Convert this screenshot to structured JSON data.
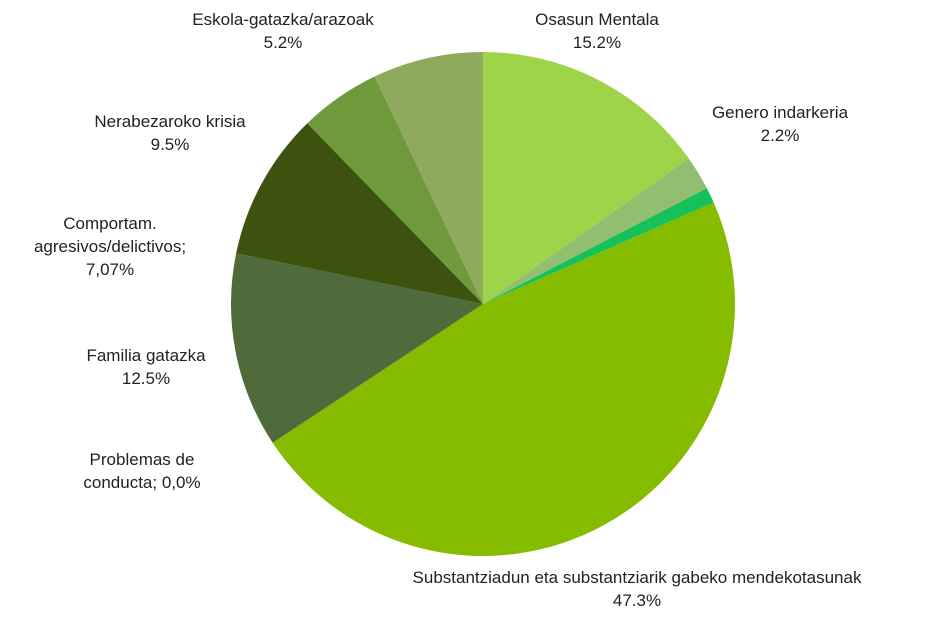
{
  "chart_data": {
    "type": "pie",
    "categories": [
      "Osasun Mentala",
      "Genero indarkeria",
      null,
      "Substantziadun eta substantziarik gabeko mendekotasunak",
      "Problemas de conducta;",
      "Familia gatazka",
      "Nerabezaroko krisia",
      "Eskola-gatazka/arazoak",
      "Comportam. agresivos/delictivos;"
    ],
    "values": [
      15.2,
      2.2,
      1.0,
      47.3,
      0.0,
      12.5,
      9.5,
      5.2,
      7.07
    ],
    "value_labels": [
      "15.2%",
      "2.2%",
      null,
      "47.3%",
      "0,0%",
      "12.5%",
      "9.5%",
      "5.2%",
      "7,07%"
    ],
    "colors": [
      "#9ed44a",
      "#93be6f",
      "#16c15a",
      "#86bc00",
      "#5a7a3a",
      "#4f6b3c",
      "#3c520e",
      "#6f9a3c",
      "#8faa5c"
    ]
  }
}
